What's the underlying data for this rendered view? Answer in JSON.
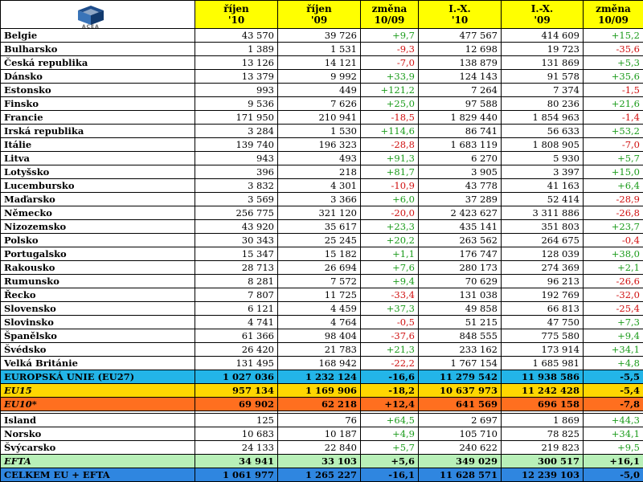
{
  "logo": {
    "text": "ACEA"
  },
  "headers": [
    {
      "line1": "",
      "line2": ""
    },
    {
      "line1": "říjen",
      "line2": "'10"
    },
    {
      "line1": "říjen",
      "line2": "'09"
    },
    {
      "line1": "změna",
      "line2": "10/09"
    },
    {
      "line1": "I.-X.",
      "line2": "'10"
    },
    {
      "line1": "I.-X.",
      "line2": "'09"
    },
    {
      "line1": "změna",
      "line2": "10/09"
    }
  ],
  "rows": [
    {
      "name": "Belgie",
      "oct10": "43 570",
      "oct09": "39 726",
      "chg": "+9,7",
      "ytd10": "477 567",
      "ytd09": "414 609",
      "ytdchg": "+15,2"
    },
    {
      "name": "Bulharsko",
      "oct10": "1 389",
      "oct09": "1 531",
      "chg": "-9,3",
      "ytd10": "12 698",
      "ytd09": "19 723",
      "ytdchg": "-35,6"
    },
    {
      "name": "Česká republika",
      "oct10": "13 126",
      "oct09": "14 121",
      "chg": "-7,0",
      "ytd10": "138 879",
      "ytd09": "131 869",
      "ytdchg": "+5,3"
    },
    {
      "name": "Dánsko",
      "oct10": "13 379",
      "oct09": "9 992",
      "chg": "+33,9",
      "ytd10": "124 143",
      "ytd09": "91 578",
      "ytdchg": "+35,6"
    },
    {
      "name": "Estonsko",
      "oct10": "993",
      "oct09": "449",
      "chg": "+121,2",
      "ytd10": "7 264",
      "ytd09": "7 374",
      "ytdchg": "-1,5"
    },
    {
      "name": "Finsko",
      "oct10": "9 536",
      "oct09": "7 626",
      "chg": "+25,0",
      "ytd10": "97 588",
      "ytd09": "80 236",
      "ytdchg": "+21,6"
    },
    {
      "name": "Francie",
      "oct10": "171 950",
      "oct09": "210 941",
      "chg": "-18,5",
      "ytd10": "1 829 440",
      "ytd09": "1 854 963",
      "ytdchg": "-1,4"
    },
    {
      "name": "Irská republika",
      "oct10": "3 284",
      "oct09": "1 530",
      "chg": "+114,6",
      "ytd10": "86 741",
      "ytd09": "56 633",
      "ytdchg": "+53,2"
    },
    {
      "name": "Itálie",
      "oct10": "139 740",
      "oct09": "196 323",
      "chg": "-28,8",
      "ytd10": "1 683 119",
      "ytd09": "1 808 905",
      "ytdchg": "-7,0"
    },
    {
      "name": "Litva",
      "oct10": "943",
      "oct09": "493",
      "chg": "+91,3",
      "ytd10": "6 270",
      "ytd09": "5 930",
      "ytdchg": "+5,7"
    },
    {
      "name": "Lotyšsko",
      "oct10": "396",
      "oct09": "218",
      "chg": "+81,7",
      "ytd10": "3 905",
      "ytd09": "3 397",
      "ytdchg": "+15,0"
    },
    {
      "name": "Lucembursko",
      "oct10": "3 832",
      "oct09": "4 301",
      "chg": "-10,9",
      "ytd10": "43 778",
      "ytd09": "41 163",
      "ytdchg": "+6,4"
    },
    {
      "name": "Maďarsko",
      "oct10": "3 569",
      "oct09": "3 366",
      "chg": "+6,0",
      "ytd10": "37 289",
      "ytd09": "52 414",
      "ytdchg": "-28,9"
    },
    {
      "name": "Německo",
      "oct10": "256 775",
      "oct09": "321 120",
      "chg": "-20,0",
      "ytd10": "2 423 627",
      "ytd09": "3 311 886",
      "ytdchg": "-26,8"
    },
    {
      "name": "Nizozemsko",
      "oct10": "43 920",
      "oct09": "35 617",
      "chg": "+23,3",
      "ytd10": "435 141",
      "ytd09": "351 803",
      "ytdchg": "+23,7"
    },
    {
      "name": "Polsko",
      "oct10": "30 343",
      "oct09": "25 245",
      "chg": "+20,2",
      "ytd10": "263 562",
      "ytd09": "264 675",
      "ytdchg": "-0,4"
    },
    {
      "name": "Portugalsko",
      "oct10": "15 347",
      "oct09": "15 182",
      "chg": "+1,1",
      "ytd10": "176 747",
      "ytd09": "128 039",
      "ytdchg": "+38,0"
    },
    {
      "name": "Rakousko",
      "oct10": "28 713",
      "oct09": "26 694",
      "chg": "+7,6",
      "ytd10": "280 173",
      "ytd09": "274 369",
      "ytdchg": "+2,1"
    },
    {
      "name": "Rumunsko",
      "oct10": "8 281",
      "oct09": "7 572",
      "chg": "+9,4",
      "ytd10": "70 629",
      "ytd09": "96 213",
      "ytdchg": "-26,6"
    },
    {
      "name": "Řecko",
      "oct10": "7 807",
      "oct09": "11 725",
      "chg": "-33,4",
      "ytd10": "131 038",
      "ytd09": "192 769",
      "ytdchg": "-32,0"
    },
    {
      "name": "Slovensko",
      "oct10": "6 121",
      "oct09": "4 459",
      "chg": "+37,3",
      "ytd10": "49 858",
      "ytd09": "66 813",
      "ytdchg": "-25,4"
    },
    {
      "name": "Slovinsko",
      "oct10": "4 741",
      "oct09": "4 764",
      "chg": "-0,5",
      "ytd10": "51 215",
      "ytd09": "47 750",
      "ytdchg": "+7,3"
    },
    {
      "name": "Španělsko",
      "oct10": "61 366",
      "oct09": "98 404",
      "chg": "-37,6",
      "ytd10": "848 555",
      "ytd09": "775 580",
      "ytdchg": "+9,4"
    },
    {
      "name": "Švédsko",
      "oct10": "26 420",
      "oct09": "21 783",
      "chg": "+21,3",
      "ytd10": "233 162",
      "ytd09": "173 914",
      "ytdchg": "+34,1"
    },
    {
      "name": "Velká Británie",
      "oct10": "131 495",
      "oct09": "168 942",
      "chg": "-22,2",
      "ytd10": "1 767 154",
      "ytd09": "1 685 981",
      "ytdchg": "+4,8"
    }
  ],
  "summary_eu": [
    {
      "key": "eu27",
      "name": "EUROPSKÁ UNIE (EU27)",
      "oct10": "1 027 036",
      "oct09": "1 232 124",
      "chg": "-16,6",
      "ytd10": "11 279 542",
      "ytd09": "11 938 586",
      "ytdchg": "-5,5",
      "color": "#23b5e8"
    },
    {
      "key": "eu15",
      "name": "EU15",
      "oct10": "957 134",
      "oct09": "1 169 906",
      "chg": "-18,2",
      "ytd10": "10 637 973",
      "ytd09": "11 242 428",
      "ytdchg": "-5,4",
      "color": "#ffd700"
    },
    {
      "key": "eu10",
      "name": "EU10*",
      "oct10": "69 902",
      "oct09": "62 218",
      "chg": "+12,4",
      "ytd10": "641 569",
      "ytd09": "696 158",
      "ytdchg": "-7,8",
      "color": "#ff6f1f"
    }
  ],
  "efta_rows": [
    {
      "name": "Island",
      "oct10": "125",
      "oct09": "76",
      "chg": "+64,5",
      "ytd10": "2 697",
      "ytd09": "1 869",
      "ytdchg": "+44,3"
    },
    {
      "name": "Norsko",
      "oct10": "10 683",
      "oct09": "10 187",
      "chg": "+4,9",
      "ytd10": "105 710",
      "ytd09": "78 825",
      "ytdchg": "+34,1"
    },
    {
      "name": "Švýcarsko",
      "oct10": "24 133",
      "oct09": "22 840",
      "chg": "+5,7",
      "ytd10": "240 622",
      "ytd09": "219 823",
      "ytdchg": "+9,5"
    }
  ],
  "summary_efta": [
    {
      "key": "efta",
      "name": "EFTA",
      "oct10": "34 941",
      "oct09": "33 103",
      "chg": "+5,6",
      "ytd10": "349 029",
      "ytd09": "300 517",
      "ytdchg": "+16,1",
      "color": "#b8f0b8"
    },
    {
      "key": "total",
      "name": "CELKEM EU + EFTA",
      "oct10": "1 061 977",
      "oct09": "1 265 227",
      "chg": "-16,1",
      "ytd10": "11 628 571",
      "ytd09": "12 239 103",
      "ytdchg": "-5,0",
      "color": "#2f86e0"
    }
  ],
  "colors": {
    "positive": "#1a9b1a",
    "negative": "#d01010",
    "header": "#ffff00"
  }
}
